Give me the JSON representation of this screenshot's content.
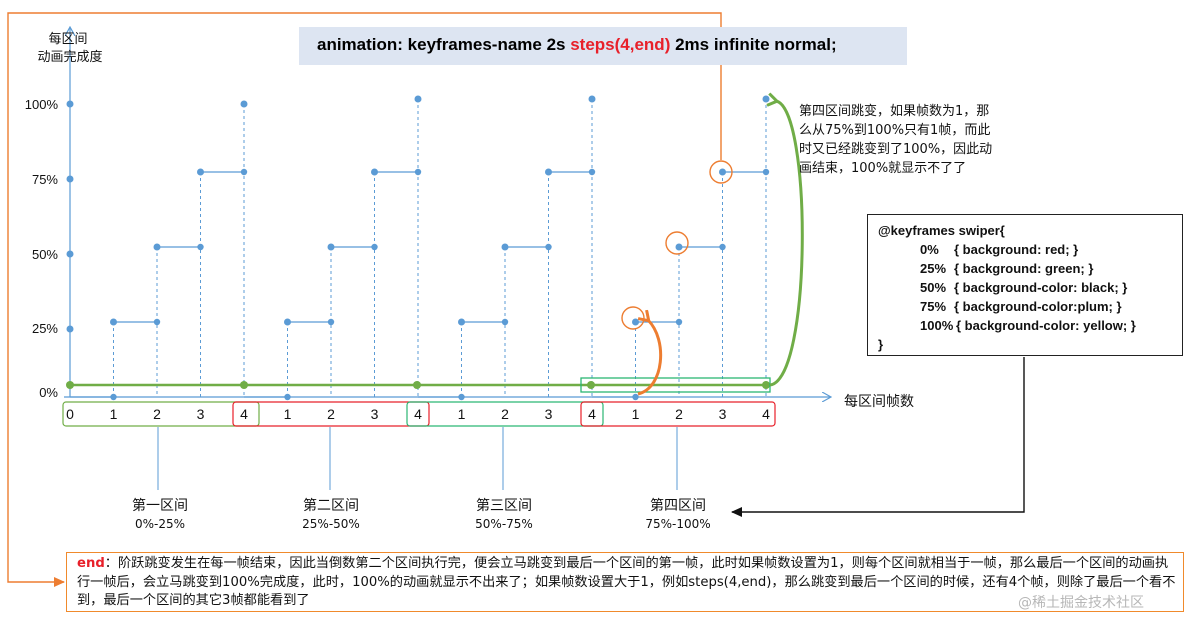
{
  "title": {
    "prefix": "animation: keyframes-name 2s ",
    "highlight": "steps(4,end)",
    "suffix": " 2ms infinite normal;"
  },
  "axes": {
    "y_label_line1": "每区间",
    "y_label_line2": "动画完成度",
    "x_label": "每区间帧数",
    "y_ticks": [
      "100%",
      "75%",
      "50%",
      "25%",
      "0%"
    ]
  },
  "frames": [
    "0",
    "1",
    "2",
    "3",
    "4",
    "1",
    "2",
    "3",
    "4",
    "1",
    "2",
    "3",
    "4",
    "1",
    "2",
    "3",
    "4"
  ],
  "intervals": [
    {
      "name": "第一区间",
      "range": "0%-25%"
    },
    {
      "name": "第二区间",
      "range": "25%-50%"
    },
    {
      "name": "第三区间",
      "range": "50%-75%"
    },
    {
      "name": "第四区间",
      "range": "75%-100%"
    }
  ],
  "note_fourth": "第四区间跳变，如果帧数为1，那么从75%到100%只有1帧，而此时又已经跳变到了100%，因此动画结束，100%就显示不了了",
  "keyframes_box": {
    "head": "@keyframes swiper{",
    "lines": [
      {
        "key": "0%",
        "rule": "{  background: red;  }"
      },
      {
        "key": "25%",
        "rule": "{ background: green; }"
      },
      {
        "key": "50%",
        "rule": "{ background-color: black; }"
      },
      {
        "key": "75%",
        "rule": "{ background-color:plum; }"
      },
      {
        "key": "100%",
        "rule": "{ background-color: yellow; }"
      }
    ],
    "tail": "}"
  },
  "end_note": {
    "keyword": "end",
    "text": "：阶跃跳变发生在每一帧结束，因此当倒数第二个区间执行完，便会立马跳变到最后一个区间的第一帧，此时如果帧数设置为1，则每个区间就相当于一帧，那么最后一个区间的动画执行一帧后，会立马跳变到100%完成度，此时，100%的动画就显示不出来了；如果帧数设置大于1，例如steps(4,end)，那么跳变到最后一个区间的时候，还有4个帧，则除了最后一个看不到，最后一个区间的其它3帧都能看到了"
  },
  "watermark": "@稀土掘金技术社区",
  "colors": {
    "blue": "#5b9bd5",
    "green": "#70ad47",
    "red": "#e8202a",
    "orange": "#ed7d31",
    "title_bg": "#dde5f2"
  }
}
